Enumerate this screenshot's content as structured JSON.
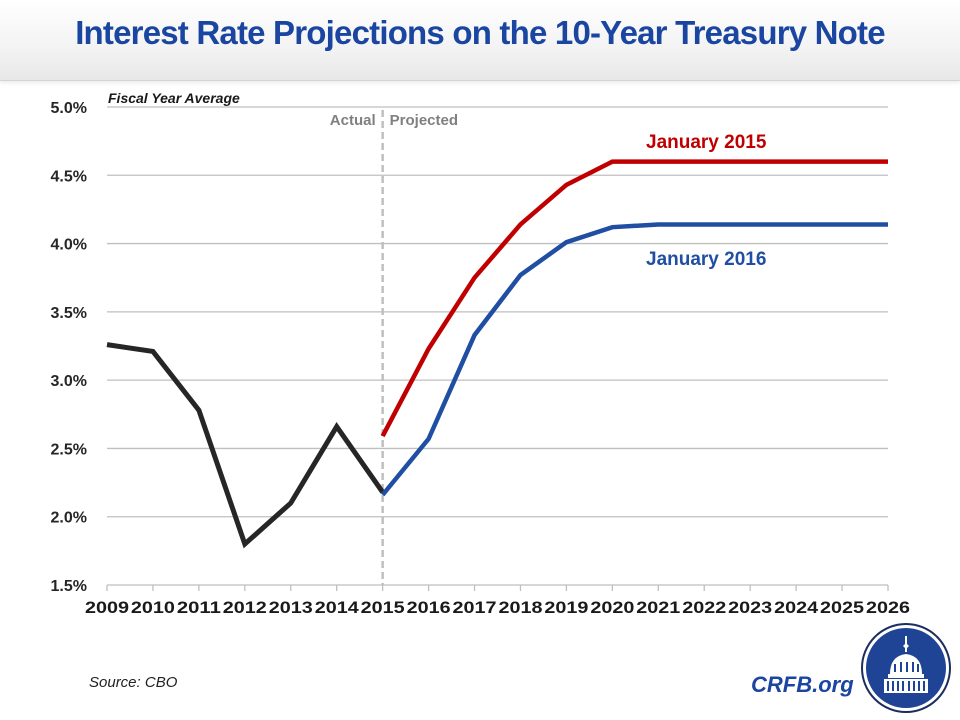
{
  "header": {
    "title": "Interest Rate Projections on the 10-Year Treasury Note"
  },
  "footer": {
    "source": "Source: CBO",
    "brand": "CRFB.org",
    "logo_icon": "capitol-dome-seal"
  },
  "colors": {
    "title": "#1a45a0",
    "actual": "#262626",
    "jan2015": "#c00000",
    "jan2016": "#1f4ea3",
    "grid": "#bfbfbf",
    "divider": "#bfbfbf",
    "phase_text": "#808080"
  },
  "chart_data": {
    "type": "line",
    "title": "Interest Rate Projections on the 10-Year Treasury Note",
    "subtitle": "Fiscal Year Average",
    "xlabel": "",
    "ylabel": "",
    "x": [
      "2009",
      "2010",
      "2011",
      "2012",
      "2013",
      "2014",
      "2015",
      "2016",
      "2017",
      "2018",
      "2019",
      "2020",
      "2021",
      "2022",
      "2023",
      "2024",
      "2025",
      "2026"
    ],
    "ylim": [
      1.5,
      5.0
    ],
    "yticks": [
      1.5,
      2.0,
      2.5,
      3.0,
      3.5,
      4.0,
      4.5,
      5.0
    ],
    "ytick_labels": [
      "1.5%",
      "2.0%",
      "2.5%",
      "3.0%",
      "3.5%",
      "4.0%",
      "4.5%",
      "5.0%"
    ],
    "grid": true,
    "divider": {
      "at": "2015",
      "left_label": "Actual",
      "right_label": "Projected"
    },
    "series": [
      {
        "name": "Actual",
        "key": "actual",
        "values": [
          3.26,
          3.21,
          2.78,
          1.8,
          2.1,
          2.66,
          2.18,
          null,
          null,
          null,
          null,
          null,
          null,
          null,
          null,
          null,
          null,
          null
        ]
      },
      {
        "name": "January 2015",
        "key": "jan2015",
        "values": [
          null,
          null,
          null,
          null,
          null,
          null,
          2.59,
          3.23,
          3.75,
          4.14,
          4.43,
          4.6,
          4.6,
          4.6,
          4.6,
          4.6,
          4.6,
          4.6
        ]
      },
      {
        "name": "January 2016",
        "key": "jan2016",
        "values": [
          null,
          null,
          null,
          null,
          null,
          null,
          2.16,
          2.57,
          3.33,
          3.77,
          4.01,
          4.12,
          4.14,
          4.14,
          4.14,
          4.14,
          4.14,
          4.14
        ]
      }
    ],
    "annotations": [
      {
        "text": "January 2015",
        "series": "jan2015"
      },
      {
        "text": "January 2016",
        "series": "jan2016"
      }
    ]
  }
}
